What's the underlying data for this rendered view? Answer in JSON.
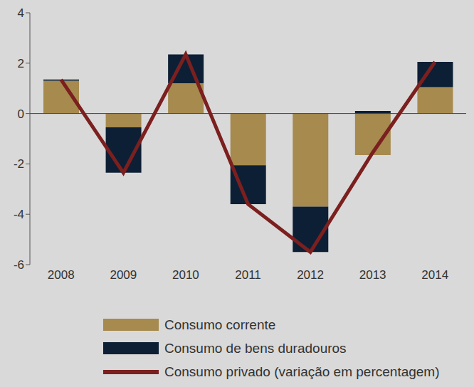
{
  "chart_data": {
    "type": "bar",
    "categories": [
      "2008",
      "2009",
      "2010",
      "2011",
      "2012",
      "2013",
      "2014"
    ],
    "series": [
      {
        "name": "Consumo corrente",
        "type": "bar",
        "color": "#a68a4e",
        "values": [
          1.3,
          -0.55,
          1.2,
          -2.05,
          -3.7,
          -1.65,
          1.05
        ]
      },
      {
        "name": "Consumo de bens duradouros",
        "type": "bar",
        "color": "#0c1f35",
        "values": [
          0.05,
          -1.8,
          1.15,
          -1.55,
          -1.8,
          0.1,
          1.0
        ]
      },
      {
        "name": "Consumo privado (variação em percentagem)",
        "type": "line",
        "color": "#7b1f1f",
        "values": [
          1.35,
          -2.35,
          2.35,
          -3.6,
          -5.5,
          -1.55,
          2.05
        ]
      }
    ],
    "stacked": true,
    "ylim": [
      -6,
      4
    ],
    "yticks": [
      -6,
      -4,
      -2,
      0,
      2,
      4
    ],
    "grid": false,
    "legend": "bottom"
  }
}
